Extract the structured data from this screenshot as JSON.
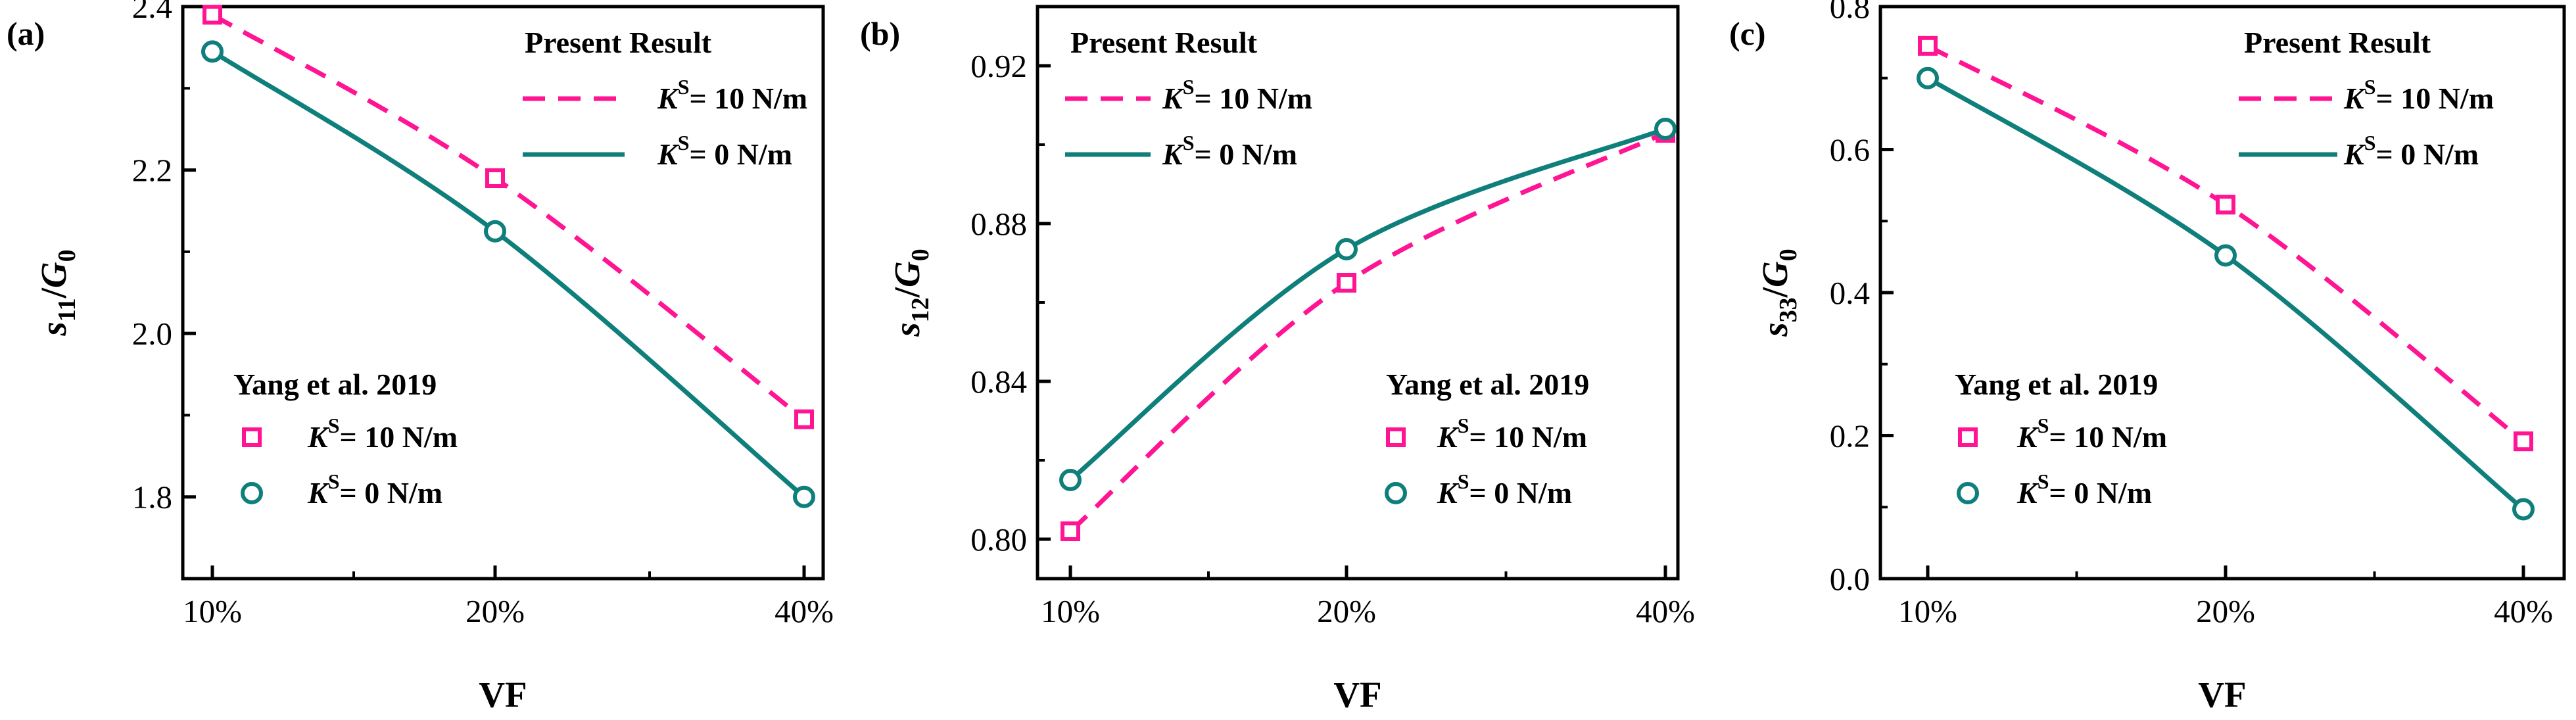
{
  "colors": {
    "pink": "#ff1493",
    "teal": "#0f7f7b",
    "axis": "#000000"
  },
  "chart_data": [
    {
      "type": "line",
      "panel": "(a)",
      "xlabel": "VF",
      "ylabel": {
        "base": "s",
        "sub": "11",
        "slash": "/",
        "denom": "G",
        "denom_sub": "0"
      },
      "categories": [
        "10%",
        "20%",
        "40%"
      ],
      "ylim": [
        1.7,
        2.4
      ],
      "yticks": [
        1.8,
        2.0,
        2.2,
        2.4
      ],
      "ytick_labels": [
        "1.8",
        "2.0",
        "2.2",
        "2.4"
      ],
      "legend_present": {
        "title": "Present Result",
        "entries": [
          {
            "label": "= 10 N/m",
            "sym": "K",
            "sup": "S",
            "style": "dashed",
            "color": "pink"
          },
          {
            "label": "= 0 N/m",
            "sym": "K",
            "sup": "S",
            "style": "solid",
            "color": "teal"
          }
        ]
      },
      "legend_ref": {
        "title": "Yang et al. 2019",
        "entries": [
          {
            "label": "= 10 N/m",
            "sym": "K",
            "sup": "S",
            "marker": "square",
            "color": "pink"
          },
          {
            "label": "= 0 N/m",
            "sym": "K",
            "sup": "S",
            "marker": "circle",
            "color": "teal"
          }
        ]
      },
      "series": [
        {
          "name": "Present Result K^S = 10 N/m",
          "kind": "line",
          "style": "dashed",
          "color": "pink",
          "values": [
            2.39,
            2.19,
            1.895
          ]
        },
        {
          "name": "Present Result K^S = 0 N/m",
          "kind": "line",
          "style": "solid",
          "color": "teal",
          "values": [
            2.345,
            2.125,
            1.8
          ]
        },
        {
          "name": "Yang et al. 2019 K^S = 10 N/m",
          "kind": "marker",
          "marker": "square",
          "color": "pink",
          "values": [
            2.39,
            2.19,
            1.895
          ]
        },
        {
          "name": "Yang et al. 2019 K^S = 0 N/m",
          "kind": "marker",
          "marker": "circle",
          "color": "teal",
          "values": [
            2.345,
            2.125,
            1.8
          ]
        }
      ]
    },
    {
      "type": "line",
      "panel": "(b)",
      "xlabel": "VF",
      "ylabel": {
        "base": "s",
        "sub": "12",
        "slash": "/",
        "denom": "G",
        "denom_sub": "0"
      },
      "categories": [
        "10%",
        "20%",
        "40%"
      ],
      "ylim": [
        0.79,
        0.935
      ],
      "yticks": [
        0.8,
        0.84,
        0.88,
        0.92
      ],
      "ytick_labels": [
        "0.80",
        "0.84",
        "0.88",
        "0.92"
      ],
      "legend_present": {
        "title": "Present Result",
        "entries": [
          {
            "label": "= 10 N/m",
            "sym": "K",
            "sup": "S",
            "style": "dashed",
            "color": "pink"
          },
          {
            "label": "= 0 N/m",
            "sym": "K",
            "sup": "S",
            "style": "solid",
            "color": "teal"
          }
        ]
      },
      "legend_ref": {
        "title": "Yang et al. 2019",
        "entries": [
          {
            "label": "= 10 N/m",
            "sym": "K",
            "sup": "S",
            "marker": "square",
            "color": "pink"
          },
          {
            "label": "= 0 N/m",
            "sym": "K",
            "sup": "S",
            "marker": "circle",
            "color": "teal"
          }
        ]
      },
      "series": [
        {
          "name": "Present Result K^S = 10 N/m",
          "kind": "line",
          "style": "dashed",
          "color": "pink",
          "values": [
            0.802,
            0.865,
            0.903
          ]
        },
        {
          "name": "Present Result K^S = 0 N/m",
          "kind": "line",
          "style": "solid",
          "color": "teal",
          "values": [
            0.815,
            0.8735,
            0.904
          ]
        },
        {
          "name": "Yang et al. 2019 K^S = 10 N/m",
          "kind": "marker",
          "marker": "square",
          "color": "pink",
          "values": [
            0.802,
            0.865,
            0.903
          ]
        },
        {
          "name": "Yang et al. 2019 K^S = 0 N/m",
          "kind": "marker",
          "marker": "circle",
          "color": "teal",
          "values": [
            0.815,
            0.8735,
            0.904
          ]
        }
      ]
    },
    {
      "type": "line",
      "panel": "(c)",
      "xlabel": "VF",
      "ylabel": {
        "base": "s",
        "sub": "33",
        "slash": "/",
        "denom": "G",
        "denom_sub": "0"
      },
      "categories": [
        "10%",
        "20%",
        "40%"
      ],
      "ylim": [
        0.0,
        0.8
      ],
      "yticks": [
        0.0,
        0.2,
        0.4,
        0.6,
        0.8
      ],
      "ytick_labels": [
        "0.0",
        "0.2",
        "0.4",
        "0.6",
        "0.8"
      ],
      "legend_present": {
        "title": "Present Result",
        "entries": [
          {
            "label": "= 10 N/m",
            "sym": "K",
            "sup": "S",
            "style": "dashed",
            "color": "pink"
          },
          {
            "label": "= 0 N/m",
            "sym": "K",
            "sup": "S",
            "style": "solid",
            "color": "teal"
          }
        ]
      },
      "legend_ref": {
        "title": "Yang et al. 2019",
        "entries": [
          {
            "label": "= 10 N/m",
            "sym": "K",
            "sup": "S",
            "marker": "square",
            "color": "pink"
          },
          {
            "label": "= 0 N/m",
            "sym": "K",
            "sup": "S",
            "marker": "circle",
            "color": "teal"
          }
        ]
      },
      "series": [
        {
          "name": "Present Result K^S = 10 N/m",
          "kind": "line",
          "style": "dashed",
          "color": "pink",
          "values": [
            0.745,
            0.523,
            0.192
          ]
        },
        {
          "name": "Present Result K^S = 0 N/m",
          "kind": "line",
          "style": "solid",
          "color": "teal",
          "values": [
            0.7,
            0.452,
            0.097
          ]
        },
        {
          "name": "Yang et al. 2019 K^S = 10 N/m",
          "kind": "marker",
          "marker": "square",
          "color": "pink",
          "values": [
            0.745,
            0.523,
            0.192
          ]
        },
        {
          "name": "Yang et al. 2019 K^S = 0 N/m",
          "kind": "marker",
          "marker": "circle",
          "color": "teal",
          "values": [
            0.7,
            0.452,
            0.097
          ]
        }
      ]
    }
  ]
}
